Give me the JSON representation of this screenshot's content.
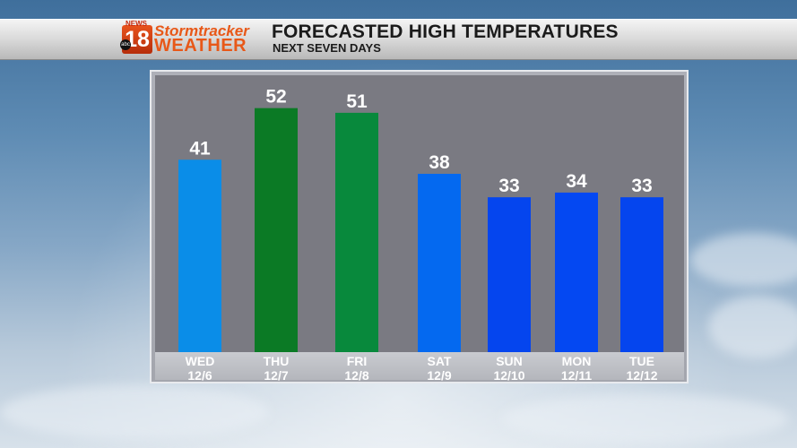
{
  "header": {
    "title": "FORECASTED HIGH TEMPERATURES",
    "subtitle": "NEXT SEVEN DAYS",
    "logo": {
      "news": "NEWS",
      "number": "18",
      "network": "abc",
      "line1": "Stormtracker",
      "line2": "WEATHER"
    }
  },
  "chart_data": {
    "type": "bar",
    "categories": [
      {
        "day": "WED",
        "date": "12/6"
      },
      {
        "day": "THU",
        "date": "12/7"
      },
      {
        "day": "FRI",
        "date": "12/8"
      },
      {
        "day": "SAT",
        "date": "12/9"
      },
      {
        "day": "SUN",
        "date": "12/10"
      },
      {
        "day": "MON",
        "date": "12/11"
      },
      {
        "day": "TUE",
        "date": "12/12"
      }
    ],
    "values": [
      41,
      52,
      51,
      38,
      33,
      34,
      33
    ],
    "colors": [
      "#0a8de8",
      "#0b7a25",
      "#08893c",
      "#0469f0",
      "#0545ee",
      "#0448f2",
      "#0545ee"
    ],
    "title": "FORECASTED HIGH TEMPERATURES",
    "subtitle": "NEXT SEVEN DAYS",
    "ylim": [
      0,
      59
    ],
    "grid": false,
    "legend": "none"
  }
}
